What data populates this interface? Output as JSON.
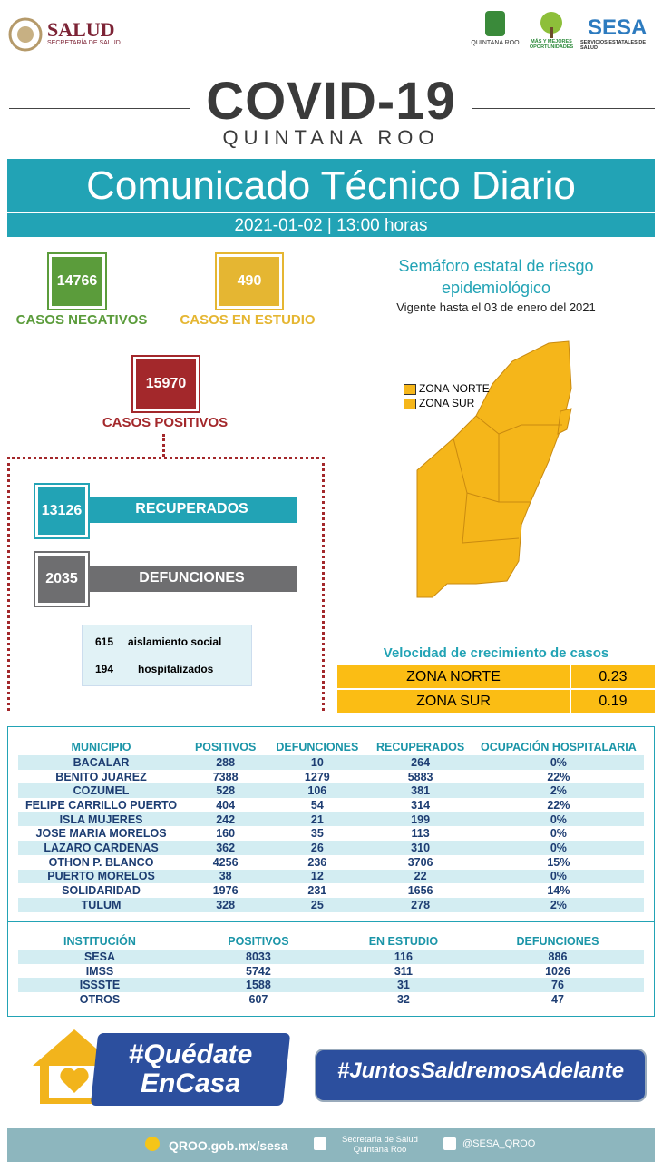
{
  "header": {
    "salud_logo": "SALUD",
    "salud_sub": "SECRETARÍA DE SALUD",
    "qroo_logo": "QUINTANA ROO",
    "oportunidades_logo": "MÁS Y MEJORES OPORTUNIDADES",
    "sesa_logo": "SESA",
    "sesa_sub": "SERVICIOS ESTATALES DE SALUD",
    "title": "COVID-19",
    "subtitle": "QUINTANA ROO"
  },
  "banner": {
    "title": "Comunicado Técnico Diario",
    "date": "2021-01-02 | 13:00 horas"
  },
  "stats": {
    "negativos": {
      "value": 14766,
      "label": "CASOS NEGATIVOS"
    },
    "estudio": {
      "value": 490,
      "label": "CASOS EN ESTUDIO"
    },
    "positivos": {
      "value": 15970,
      "label": "CASOS POSITIVOS"
    },
    "recuperados": {
      "value": 13126,
      "label": "RECUPERADOS"
    },
    "defunciones": {
      "value": 2035,
      "label": "DEFUNCIONES"
    },
    "aislamiento": {
      "value": 615,
      "label": "aislamiento social"
    },
    "hospitalizados": {
      "value": 194,
      "label": "hospitalizados"
    }
  },
  "semaforo": {
    "title": "Semáforo estatal de riesgo epidemiológico",
    "vigente": "Vigente hasta el 03 de enero del 2021",
    "legend": [
      "ZONA NORTE",
      "ZONA SUR"
    ]
  },
  "velocidad": {
    "title": "Velocidad de crecimiento de casos",
    "rows": [
      [
        "ZONA NORTE",
        0.23
      ],
      [
        "ZONA SUR",
        0.19
      ]
    ]
  },
  "municipios": {
    "columns": [
      "MUNICIPIO",
      "POSITIVOS",
      "DEFUNCIONES",
      "RECUPERADOS",
      "OCUPACIÓN HOSPITALARIA"
    ],
    "rows": [
      [
        "BACALAR",
        288,
        10,
        264,
        "0%"
      ],
      [
        "BENITO JUAREZ",
        7388,
        1279,
        5883,
        "22%"
      ],
      [
        "COZUMEL",
        528,
        106,
        381,
        "2%"
      ],
      [
        "FELIPE CARRILLO PUERTO",
        404,
        54,
        314,
        "22%"
      ],
      [
        "ISLA MUJERES",
        242,
        21,
        199,
        "0%"
      ],
      [
        "JOSE MARIA MORELOS",
        160,
        35,
        113,
        "0%"
      ],
      [
        "LAZARO CARDENAS",
        362,
        26,
        310,
        "0%"
      ],
      [
        "OTHON P. BLANCO",
        4256,
        236,
        3706,
        "15%"
      ],
      [
        "PUERTO MORELOS",
        38,
        12,
        22,
        "0%"
      ],
      [
        "SOLIDARIDAD",
        1976,
        231,
        1656,
        "14%"
      ],
      [
        "TULUM",
        328,
        25,
        278,
        "2%"
      ]
    ]
  },
  "instituciones": {
    "columns": [
      "INSTITUCIÓN",
      "POSITIVOS",
      "EN ESTUDIO",
      "DEFUNCIONES"
    ],
    "rows": [
      [
        "SESA",
        8033,
        116,
        886
      ],
      [
        "IMSS",
        5742,
        311,
        1026
      ],
      [
        "ISSSTE",
        1588,
        31,
        76
      ],
      [
        "OTROS",
        607,
        32,
        47
      ]
    ]
  },
  "footer": {
    "quedate_1": "#Quédate",
    "quedate_2": "EnCasa",
    "juntos": "#JuntosSaldremosAdelante",
    "web": "QROO.gob.mx/sesa",
    "facebook": "Secretaría de Salud Quintana Roo",
    "twitter": "@SESA_QROO"
  }
}
